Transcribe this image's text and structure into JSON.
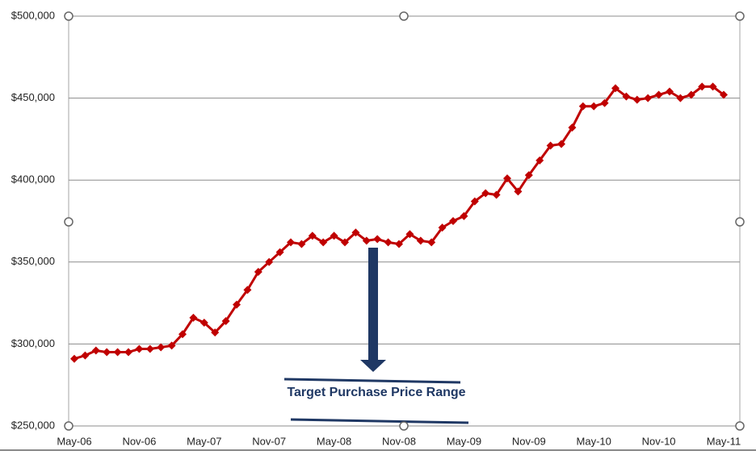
{
  "chart_data": {
    "type": "line",
    "annotation": "Target Purchase Price Range",
    "categories": [
      "May-06",
      null,
      null,
      null,
      null,
      null,
      "Nov-06",
      null,
      null,
      null,
      null,
      null,
      "May-07",
      null,
      null,
      null,
      null,
      null,
      "Nov-07",
      null,
      null,
      null,
      null,
      null,
      "May-08",
      null,
      null,
      null,
      null,
      null,
      "Nov-08",
      null,
      null,
      null,
      null,
      null,
      "May-09",
      null,
      null,
      null,
      null,
      null,
      "Nov-09",
      null,
      null,
      null,
      null,
      null,
      "May-10",
      null,
      null,
      null,
      null,
      null,
      "Nov-10",
      null,
      null,
      null,
      null,
      null,
      "May-11"
    ],
    "values": [
      291000,
      293000,
      296000,
      295000,
      295000,
      295000,
      297000,
      297000,
      298000,
      299000,
      306000,
      316000,
      313000,
      307000,
      314000,
      324000,
      333000,
      344000,
      350000,
      356000,
      362000,
      361000,
      366000,
      362000,
      366000,
      362000,
      368000,
      363000,
      364000,
      362000,
      361000,
      367000,
      363000,
      362000,
      371000,
      375000,
      378000,
      387000,
      392000,
      391000,
      401000,
      393000,
      403000,
      412000,
      421000,
      422000,
      432000,
      445000,
      445000,
      447000,
      456000,
      451000,
      449000,
      450000,
      452000,
      454000,
      450000,
      452000,
      457000,
      457000,
      452000
    ],
    "color": "#c00000",
    "marker": "diamond",
    "ylim": [
      250000,
      500000
    ],
    "yticks": [
      {
        "value": 250000,
        "label": "$250,000"
      },
      {
        "value": 300000,
        "label": "$300,000"
      },
      {
        "value": 350000,
        "label": "$350,000"
      },
      {
        "value": 400000,
        "label": "$400,000"
      },
      {
        "value": 450000,
        "label": "$450,000"
      },
      {
        "value": 500000,
        "label": "$500,000"
      }
    ],
    "grid": true
  }
}
